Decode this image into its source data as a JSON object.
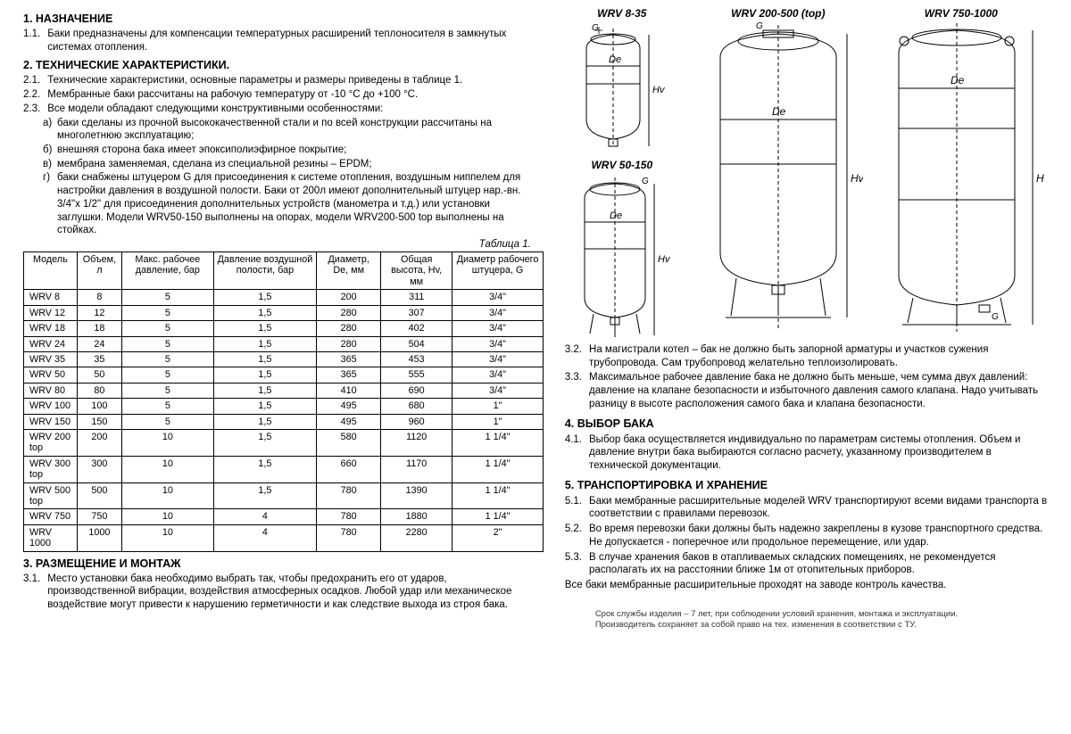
{
  "s1": {
    "title": "1. НАЗНАЧЕНИЕ",
    "p11_num": "1.1.",
    "p11": "Баки предназначены для компенсации температурных расширений теплоносителя в замкнутых системах отопления."
  },
  "s2": {
    "title": "2. ТЕХНИЧЕСКИЕ ХАРАКТЕРИСТИКИ.",
    "p21_num": "2.1.",
    "p21": "Технические характеристики, основные параметры и размеры приведены в таблице 1.",
    "p22_num": "2.2.",
    "p22": "Мембранные баки рассчитаны на рабочую температуру от -10 °С до +100 °С.",
    "p23_num": "2.3.",
    "p23": "Все модели обладают следующими конструктивными особенностями:",
    "a_lbl": "а)",
    "a": "баки сделаны из прочной высококачественной стали и по всей конструкции рассчитаны на многолетнюю эксплуатацию;",
    "b_lbl": "б)",
    "b": "внешняя сторона бака имеет эпоксиполиэфирное покрытие;",
    "v_lbl": "в)",
    "v": "мембрана заменяемая, сделана из специальной резины – EPDM;",
    "g_lbl": "г)",
    "g": "баки снабжены штуцером G для присоединения к системе отопления, воздушным ниппелем для настройки давления в воздушной полости. Баки от 200л имеют дополнительный штуцер нар.-вн. 3/4\"х 1/2\" для присоединения дополнительных устройств (манометра и т.д.) или установки заглушки. Модели WRV50-150 выполнены на опорах, модели WRV200-500 top выполнены на стойках."
  },
  "table": {
    "caption": "Таблица 1.",
    "h0": "Модель",
    "h1": "Объем, л",
    "h2": "Макс. рабочее давление, бар",
    "h3": "Давление воздушной полости, бар",
    "h4": "Диаметр, De, мм",
    "h5": "Общая высота, Hv, мм",
    "h6": "Диаметр рабочего штуцера, G",
    "rows": [
      [
        "WRV 8",
        "8",
        "5",
        "1,5",
        "200",
        "311",
        "3/4\""
      ],
      [
        "WRV 12",
        "12",
        "5",
        "1,5",
        "280",
        "307",
        "3/4\""
      ],
      [
        "WRV 18",
        "18",
        "5",
        "1,5",
        "280",
        "402",
        "3/4\""
      ],
      [
        "WRV 24",
        "24",
        "5",
        "1,5",
        "280",
        "504",
        "3/4\""
      ],
      [
        "WRV 35",
        "35",
        "5",
        "1,5",
        "365",
        "453",
        "3/4\""
      ],
      [
        "WRV 50",
        "50",
        "5",
        "1,5",
        "365",
        "555",
        "3/4\""
      ],
      [
        "WRV 80",
        "80",
        "5",
        "1,5",
        "410",
        "690",
        "3/4\""
      ],
      [
        "WRV 100",
        "100",
        "5",
        "1,5",
        "495",
        "680",
        "1\""
      ],
      [
        "WRV 150",
        "150",
        "5",
        "1,5",
        "495",
        "960",
        "1\""
      ],
      [
        "WRV 200 top",
        "200",
        "10",
        "1,5",
        "580",
        "1120",
        "1 1/4\""
      ],
      [
        "WRV 300 top",
        "300",
        "10",
        "1,5",
        "660",
        "1170",
        "1 1/4\""
      ],
      [
        "WRV 500 top",
        "500",
        "10",
        "1,5",
        "780",
        "1390",
        "1 1/4\""
      ],
      [
        "WRV 750",
        "750",
        "10",
        "4",
        "780",
        "1880",
        "1 1/4\""
      ],
      [
        "WRV 1000",
        "1000",
        "10",
        "4",
        "780",
        "2280",
        "2\""
      ]
    ]
  },
  "s3": {
    "title": "3. РАЗМЕЩЕНИЕ И МОНТАЖ",
    "p31_num": "3.1.",
    "p31": "Место установки бака необходимо выбрать так, чтобы предохранить его от ударов, производственной вибрации, воздействия атмосферных осадков. Любой удар или механическое воздействие могут привести к нарушению герметичности и как следствие выхода из строя бака.",
    "p32_num": "3.2.",
    "p32": "На магистрали котел – бак не должно  быть запорной арматуры и участков сужения трубопровода. Сам трубопровод желательно теплоизолировать.",
    "p33_num": "3.3.",
    "p33": "Максимальное рабочее давление бака не должно быть меньше, чем сумма двух давлений: давление на клапане безопасности и избыточного давления самого клапана. Надо учитывать разницу в высоте расположения самого бака и клапана безопасности."
  },
  "s4": {
    "title": "4. ВЫБОР БАКА",
    "p41_num": "4.1.",
    "p41": "Выбор бака осуществляется индивидуально по параметрам системы отопления. Объем и давление внутри бака выбираются согласно расчету, указанному производителем в технической документации."
  },
  "s5": {
    "title": "5. ТРАНСПОРТИРОВКА И ХРАНЕНИЕ",
    "p51_num": "5.1.",
    "p51": "Баки мембранные расширительные моделей WRV транспортируют всеми видами транспорта в соответствии с правилами перевозок.",
    "p52_num": "5.2.",
    "p52": "Во время перевозки баки должны быть надежно закреплены в кузове транспортного средства. Не допускается - поперечное или продольное перемещение, или удар.",
    "p53_num": "5.3.",
    "p53": "В случае хранения баков в отапливаемых складских помещениях, не рекомендуется располагать их на расстоянии ближе 1м от отопительных приборов.",
    "p5end": "Все баки мембранные расширительные проходят на заводе контроль качества."
  },
  "diag": {
    "t1": "WRV 8-35",
    "t2": "WRV 50-150",
    "t3": "WRV 200-500 (top)",
    "t4": "WRV 750-1000",
    "De": "De",
    "Hv": "Hv",
    "H": "H",
    "G": "G"
  },
  "footer": {
    "l1": "Срок службы изделия – 7 лет, при соблюдении условий хранения, монтажа и эксплуатации.",
    "l2": "Производитель сохраняет за собой право на тех. изменения в соответствии с ТУ."
  },
  "style": {
    "stroke": "#000000",
    "dash": "4 3",
    "bg": "#ffffff"
  }
}
